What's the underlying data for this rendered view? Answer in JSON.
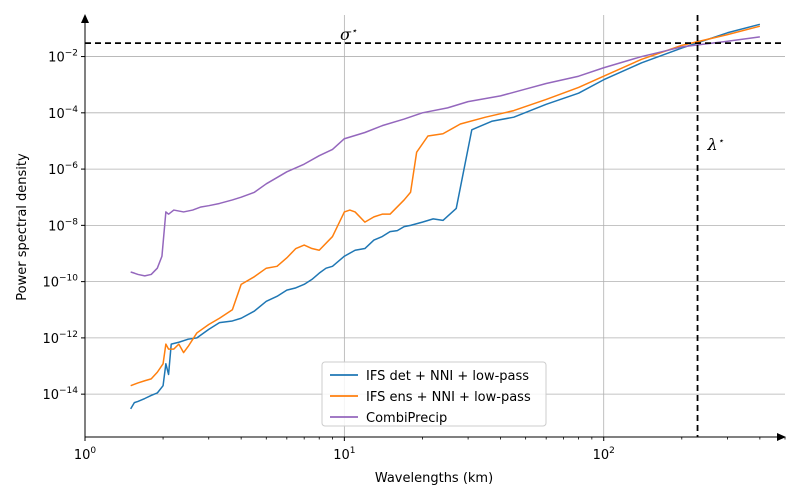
{
  "chart_data": {
    "type": "line",
    "xlabel": "Wavelengths (km)",
    "ylabel": "Power spectral density",
    "x_scale": "log",
    "y_scale": "log",
    "xlim": [
      1,
      500
    ],
    "ylim": [
      3e-16,
      0.3
    ],
    "x_ticks": [
      {
        "value": 1,
        "label": "10",
        "exp": "0"
      },
      {
        "value": 10,
        "label": "10",
        "exp": "1"
      },
      {
        "value": 100,
        "label": "10",
        "exp": "2"
      }
    ],
    "y_ticks": [
      {
        "value": 1e-14,
        "label": "10",
        "exp": "−14"
      },
      {
        "value": 1e-12,
        "label": "10",
        "exp": "−12"
      },
      {
        "value": 1e-10,
        "label": "10",
        "exp": "−10"
      },
      {
        "value": 1e-08,
        "label": "10",
        "exp": "−8"
      },
      {
        "value": 1e-06,
        "label": "10",
        "exp": "−6"
      },
      {
        "value": 0.0001,
        "label": "10",
        "exp": "−4"
      },
      {
        "value": 0.01,
        "label": "10",
        "exp": "−2"
      }
    ],
    "grid": true,
    "legend_position": "lower-center",
    "series": [
      {
        "name": "IFS det + NNI + low-pass",
        "color": "#1f77b4",
        "points": [
          [
            1.5,
            3e-15
          ],
          [
            1.55,
            5e-15
          ],
          [
            1.6,
            5.5e-15
          ],
          [
            1.7,
            7e-15
          ],
          [
            1.8,
            9e-15
          ],
          [
            1.9,
            1.1e-14
          ],
          [
            2.0,
            2e-14
          ],
          [
            2.05,
            1.2e-13
          ],
          [
            2.1,
            5e-14
          ],
          [
            2.15,
            6e-13
          ],
          [
            2.3,
            7e-13
          ],
          [
            2.5,
            9e-13
          ],
          [
            2.7,
            1e-12
          ],
          [
            3.0,
            2e-12
          ],
          [
            3.3,
            3.5e-12
          ],
          [
            3.7,
            4e-12
          ],
          [
            4.0,
            5e-12
          ],
          [
            4.5,
            9e-12
          ],
          [
            5.0,
            2e-11
          ],
          [
            5.5,
            3e-11
          ],
          [
            6.0,
            5e-11
          ],
          [
            6.5,
            6e-11
          ],
          [
            7.0,
            8e-11
          ],
          [
            7.5,
            1.2e-10
          ],
          [
            8.0,
            2e-10
          ],
          [
            8.5,
            3e-10
          ],
          [
            9.0,
            3.5e-10
          ],
          [
            10.0,
            8e-10
          ],
          [
            11.0,
            1.3e-09
          ],
          [
            12.0,
            1.5e-09
          ],
          [
            13.0,
            3e-09
          ],
          [
            14.0,
            4e-09
          ],
          [
            15.0,
            6e-09
          ],
          [
            16.0,
            6.5e-09
          ],
          [
            17.0,
            9e-09
          ],
          [
            18.0,
            1e-08
          ],
          [
            20.0,
            1.3e-08
          ],
          [
            22.0,
            1.7e-08
          ],
          [
            24.0,
            1.5e-08
          ],
          [
            27.0,
            4e-08
          ],
          [
            31.0,
            2.5e-05
          ],
          [
            37.0,
            5e-05
          ],
          [
            45.0,
            7e-05
          ],
          [
            60.0,
            0.0002
          ],
          [
            80.0,
            0.0005
          ],
          [
            100.0,
            0.0015
          ],
          [
            140.0,
            0.006
          ],
          [
            200.0,
            0.02
          ],
          [
            300.0,
            0.07
          ],
          [
            400.0,
            0.14
          ]
        ]
      },
      {
        "name": "IFS ens + NNI + low-pass",
        "color": "#ff7f0e",
        "points": [
          [
            1.5,
            2e-14
          ],
          [
            1.6,
            2.5e-14
          ],
          [
            1.7,
            3e-14
          ],
          [
            1.8,
            3.5e-14
          ],
          [
            1.9,
            6e-14
          ],
          [
            2.0,
            1.2e-13
          ],
          [
            2.05,
            6e-13
          ],
          [
            2.1,
            4e-13
          ],
          [
            2.2,
            4e-13
          ],
          [
            2.3,
            6e-13
          ],
          [
            2.4,
            3e-13
          ],
          [
            2.5,
            5e-13
          ],
          [
            2.7,
            1.5e-12
          ],
          [
            3.0,
            3e-12
          ],
          [
            3.3,
            5e-12
          ],
          [
            3.7,
            1e-11
          ],
          [
            4.0,
            8e-11
          ],
          [
            4.5,
            1.5e-10
          ],
          [
            5.0,
            3e-10
          ],
          [
            5.5,
            3.5e-10
          ],
          [
            6.0,
            7e-10
          ],
          [
            6.5,
            1.5e-09
          ],
          [
            7.0,
            2e-09
          ],
          [
            7.5,
            1.5e-09
          ],
          [
            8.0,
            1.3e-09
          ],
          [
            9.0,
            4e-09
          ],
          [
            10.0,
            3e-08
          ],
          [
            10.5,
            3.5e-08
          ],
          [
            11.0,
            3e-08
          ],
          [
            12.0,
            1.3e-08
          ],
          [
            13.0,
            2e-08
          ],
          [
            14.0,
            2.5e-08
          ],
          [
            15.0,
            2.5e-08
          ],
          [
            17.0,
            8e-08
          ],
          [
            18.0,
            1.5e-07
          ],
          [
            19.0,
            4e-06
          ],
          [
            21.0,
            1.5e-05
          ],
          [
            24.0,
            1.8e-05
          ],
          [
            28.0,
            4e-05
          ],
          [
            35.0,
            7e-05
          ],
          [
            45.0,
            0.00012
          ],
          [
            60.0,
            0.0003
          ],
          [
            80.0,
            0.0008
          ],
          [
            100.0,
            0.002
          ],
          [
            140.0,
            0.008
          ],
          [
            200.0,
            0.025
          ],
          [
            300.0,
            0.06
          ],
          [
            400.0,
            0.12
          ]
        ]
      },
      {
        "name": "CombiPrecip",
        "color": "#9467bd",
        "points": [
          [
            1.5,
            2.2e-10
          ],
          [
            1.55,
            2e-10
          ],
          [
            1.6,
            1.8e-10
          ],
          [
            1.7,
            1.6e-10
          ],
          [
            1.8,
            1.8e-10
          ],
          [
            1.9,
            3e-10
          ],
          [
            1.98,
            8e-10
          ],
          [
            2.05,
            3e-08
          ],
          [
            2.1,
            2.5e-08
          ],
          [
            2.2,
            3.5e-08
          ],
          [
            2.4,
            3e-08
          ],
          [
            2.6,
            3.5e-08
          ],
          [
            2.8,
            4.5e-08
          ],
          [
            3.0,
            5e-08
          ],
          [
            3.3,
            6e-08
          ],
          [
            3.7,
            8e-08
          ],
          [
            4.0,
            1e-07
          ],
          [
            4.5,
            1.5e-07
          ],
          [
            5.0,
            3e-07
          ],
          [
            5.5,
            5e-07
          ],
          [
            6.0,
            8e-07
          ],
          [
            7.0,
            1.5e-06
          ],
          [
            8.0,
            3e-06
          ],
          [
            9.0,
            5e-06
          ],
          [
            10.0,
            1.2e-05
          ],
          [
            12.0,
            2e-05
          ],
          [
            14.0,
            3.5e-05
          ],
          [
            17.0,
            6e-05
          ],
          [
            20.0,
            0.0001
          ],
          [
            25.0,
            0.00015
          ],
          [
            30.0,
            0.00025
          ],
          [
            40.0,
            0.0004
          ],
          [
            50.0,
            0.0007
          ],
          [
            60.0,
            0.0011
          ],
          [
            80.0,
            0.002
          ],
          [
            100.0,
            0.004
          ],
          [
            140.0,
            0.01
          ],
          [
            200.0,
            0.022
          ],
          [
            300.0,
            0.035
          ],
          [
            400.0,
            0.05
          ]
        ]
      }
    ],
    "reference_lines": [
      {
        "orientation": "horizontal",
        "value": 0.03,
        "label": "σ",
        "label_sup": "⋆",
        "style": "dashed",
        "color": "#000000"
      },
      {
        "orientation": "vertical",
        "value": 230,
        "label": "λ",
        "label_sup": "⋆",
        "style": "dashed",
        "color": "#000000"
      }
    ]
  }
}
